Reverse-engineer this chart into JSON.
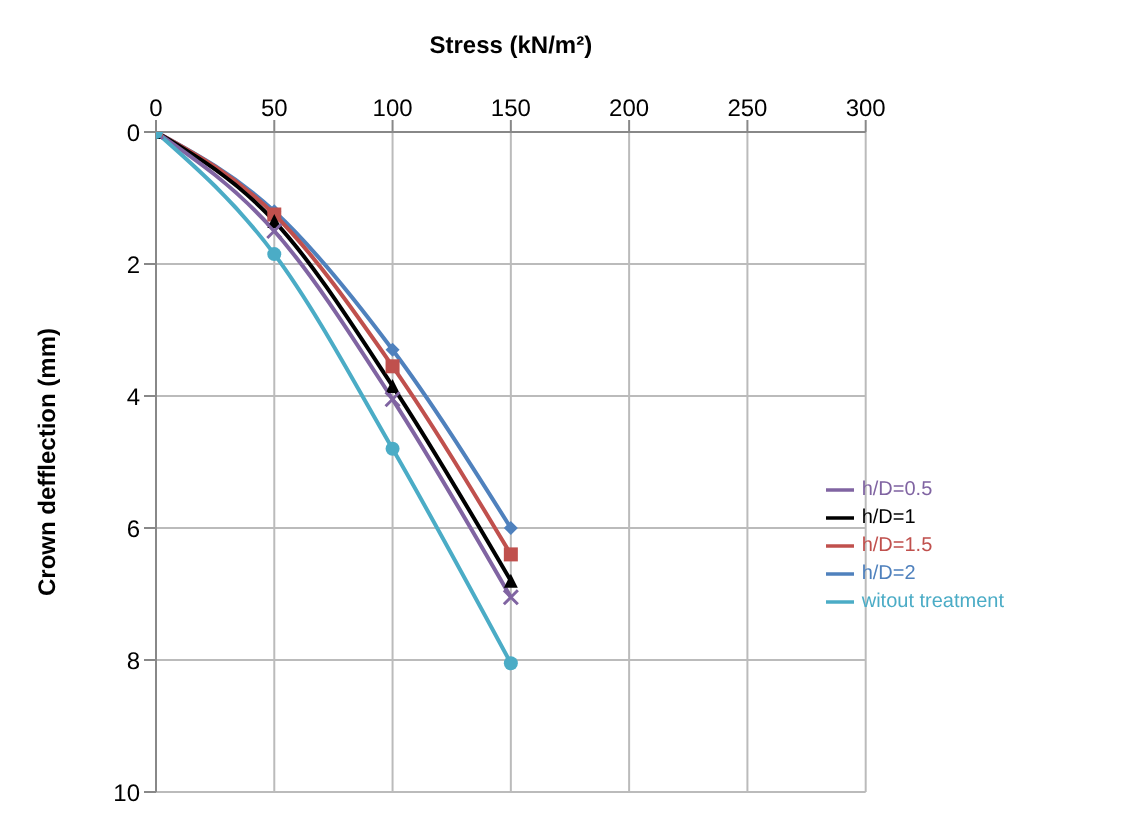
{
  "chart_data": {
    "type": "line",
    "xlabel": "Stress (kN/m²)",
    "ylabel": "Crown defflection (mm)",
    "x": [
      0,
      50,
      100,
      150
    ],
    "xlim": [
      0,
      300
    ],
    "xticks": [
      0,
      50,
      100,
      150,
      200,
      250,
      300
    ],
    "ylim": [
      10,
      0
    ],
    "yticks": [
      0,
      2,
      4,
      6,
      8,
      10
    ],
    "grid": true,
    "legend": "right",
    "series": [
      {
        "name": "h/D=2",
        "color": "#4f81bd",
        "marker": "diamond",
        "values": [
          0,
          1.2,
          3.3,
          6.0
        ]
      },
      {
        "name": "h/D=1.5",
        "color": "#c0504d",
        "marker": "square",
        "values": [
          0,
          1.25,
          3.55,
          6.4
        ]
      },
      {
        "name": "h/D=1",
        "color": "#000000",
        "marker": "triangle",
        "values": [
          0,
          1.35,
          3.85,
          6.8
        ]
      },
      {
        "name": "h/D=0.5",
        "color": "#8064a2",
        "marker": "cross",
        "values": [
          0,
          1.5,
          4.05,
          7.05
        ]
      },
      {
        "name": "witout treatment",
        "color": "#4bacc6",
        "marker": "circle",
        "values": [
          0,
          1.85,
          4.8,
          8.05
        ]
      }
    ]
  }
}
